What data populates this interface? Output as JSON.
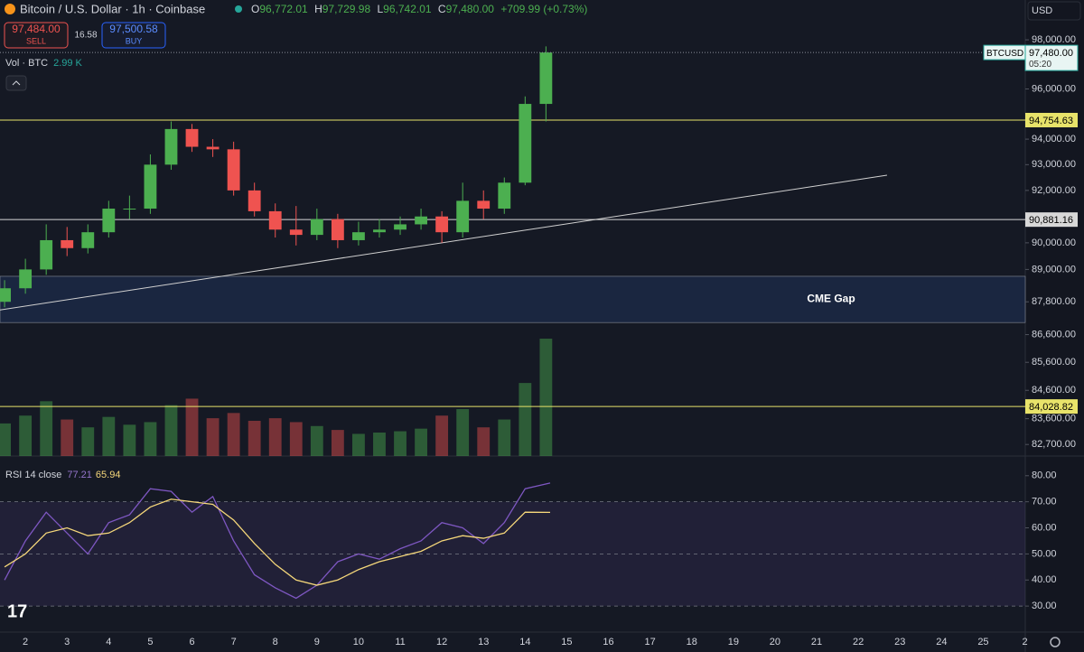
{
  "toolbar": {
    "title": "Bitcoin / U.S. Dollar · 1h · Coinbase",
    "ohlc": [
      {
        "key": "O",
        "value": "96,772.01"
      },
      {
        "key": "H",
        "value": "97,729.98"
      },
      {
        "key": "L",
        "value": "96,742.01"
      },
      {
        "key": "C",
        "value": "97,480.00"
      }
    ],
    "change": "+709.99 (+0.73%)",
    "sell": {
      "price": "97,484.00",
      "label": "SELL"
    },
    "spread": "16.58",
    "buy": {
      "price": "97,500.58",
      "label": "BUY"
    },
    "volume": {
      "label": "Vol · BTC",
      "value": "2.99 K"
    },
    "currency": "USD",
    "price_tag": {
      "symbol": "BTCUSD",
      "price": "97,480.00",
      "countdown": "05:20"
    }
  },
  "chart_data": [
    {
      "type": "candlestick",
      "up_color": "#4caf50",
      "down_color": "#ef5350",
      "log_scale": true,
      "x": [
        1.5,
        2,
        2.5,
        3,
        3.5,
        4,
        4.5,
        5,
        5.5,
        6,
        6.5,
        7,
        7.5,
        8,
        8.5,
        9,
        9.5,
        10,
        10.5,
        11,
        11.5,
        12,
        12.5,
        13,
        13.5,
        14,
        14.5
      ],
      "open": [
        87800,
        88300,
        89000,
        90100,
        89800,
        90400,
        91300,
        91300,
        93000,
        94400,
        93700,
        93600,
        92000,
        91200,
        90500,
        90300,
        90900,
        90100,
        90400,
        90500,
        90700,
        91000,
        90400,
        91600,
        91300,
        92300,
        95400
      ],
      "high": [
        88600,
        89400,
        90700,
        90600,
        90700,
        91600,
        91800,
        93400,
        94700,
        94600,
        94000,
        93900,
        92300,
        91500,
        91400,
        91300,
        91100,
        90800,
        90900,
        91000,
        91300,
        91200,
        92300,
        92000,
        92500,
        95700,
        97730
      ],
      "low": [
        87600,
        88100,
        88800,
        89500,
        89600,
        90200,
        90900,
        91100,
        92800,
        93500,
        93300,
        91800,
        91000,
        90200,
        89900,
        90100,
        89800,
        89900,
        90200,
        90300,
        90500,
        90000,
        90200,
        90900,
        91100,
        92200,
        94700
      ],
      "close": [
        88300,
        89000,
        90100,
        89800,
        90400,
        91300,
        91300,
        93000,
        94400,
        93700,
        93600,
        92000,
        91200,
        90500,
        90300,
        90900,
        90100,
        90400,
        90500,
        90700,
        91000,
        90400,
        91600,
        91300,
        92300,
        95400,
        97480
      ],
      "volume": [
        2500,
        3100,
        4200,
        2800,
        2200,
        3000,
        2400,
        2600,
        3900,
        4400,
        2900,
        3300,
        2700,
        2900,
        2600,
        2300,
        2000,
        1700,
        1800,
        1900,
        2100,
        3100,
        3600,
        2200,
        2800,
        5600,
        9000
      ],
      "xlim": [
        1.39,
        26.01
      ],
      "xticks": [
        2,
        3,
        4,
        5,
        6,
        7,
        8,
        9,
        10,
        11,
        12,
        13,
        14,
        15,
        16,
        17,
        18,
        19,
        20,
        21,
        22,
        23,
        24,
        25,
        {
          "value": 26,
          "label": "2"
        }
      ],
      "ylim": [
        82300,
        99650
      ],
      "yticks": [
        {
          "value": 98000,
          "label": "98,000.00"
        },
        {
          "value": 96000,
          "label": "96,000.00"
        },
        {
          "value": 94000,
          "label": "94,000.00"
        },
        {
          "value": 93000,
          "label": "93,000.00"
        },
        {
          "value": 92000,
          "label": "92,000.00"
        },
        {
          "value": 90000,
          "label": "90,000.00"
        },
        {
          "value": 89000,
          "label": "89,000.00"
        },
        {
          "value": 87800,
          "label": "87,800.00"
        },
        {
          "value": 86600,
          "label": "86,600.00"
        },
        {
          "value": 85600,
          "label": "85,600.00"
        },
        {
          "value": 84600,
          "label": "84,600.00"
        },
        {
          "value": 83600,
          "label": "83,600.00"
        },
        {
          "value": 82700,
          "label": "82,700.00"
        }
      ],
      "levels": [
        {
          "value": 94754.63,
          "label": "94,754.63",
          "color": "#e8e36a"
        },
        {
          "value": 90881.16,
          "label": "90,881.16",
          "color": "#d8d8d8"
        },
        {
          "value": 84028.82,
          "label": "84,028.82",
          "color": "#e8e36a"
        }
      ],
      "zones": [
        {
          "label": "CME Gap",
          "y": [
            87040,
            88745
          ],
          "color": "#1c2b4a"
        }
      ],
      "trendline": {
        "x": [
          1.39,
          22.69
        ],
        "y": [
          87500,
          92590
        ],
        "color": "#d0d0d0"
      }
    },
    {
      "type": "line",
      "title": "RSI 14 close",
      "x": [
        1.5,
        2,
        2.5,
        3,
        3.5,
        4,
        4.5,
        5,
        5.5,
        6,
        6.5,
        7,
        7.5,
        8,
        8.5,
        9,
        9.5,
        10,
        10.5,
        11,
        11.5,
        12,
        12.5,
        13,
        13.5,
        14,
        14.6
      ],
      "series": [
        {
          "color": "#7e57c2",
          "values": [
            40,
            55,
            66,
            58,
            50,
            62,
            65,
            75,
            74,
            66,
            72,
            55,
            42,
            37,
            33,
            38,
            47,
            50,
            48,
            52,
            55,
            62,
            60,
            54,
            62,
            75,
            77.21
          ]
        },
        {
          "color": "#f5d77a",
          "values": [
            45,
            50,
            58,
            60,
            57,
            58,
            62,
            68,
            71,
            70,
            69,
            63,
            54,
            46,
            40,
            38,
            40,
            44,
            47,
            49,
            51,
            55,
            57,
            56,
            58,
            66,
            65.94
          ]
        }
      ],
      "ylim": [
        20,
        87.2
      ],
      "yticks": [
        {
          "value": 30,
          "label": "30.00"
        },
        {
          "value": 40,
          "label": "40.00"
        },
        {
          "value": 50,
          "label": "50.00"
        },
        {
          "value": 60,
          "label": "60.00"
        },
        {
          "value": 70,
          "label": "70.00"
        },
        {
          "value": 80,
          "label": "80.00"
        }
      ],
      "band": [
        30,
        70
      ],
      "dashed_levels": [
        30,
        50,
        70
      ]
    }
  ]
}
